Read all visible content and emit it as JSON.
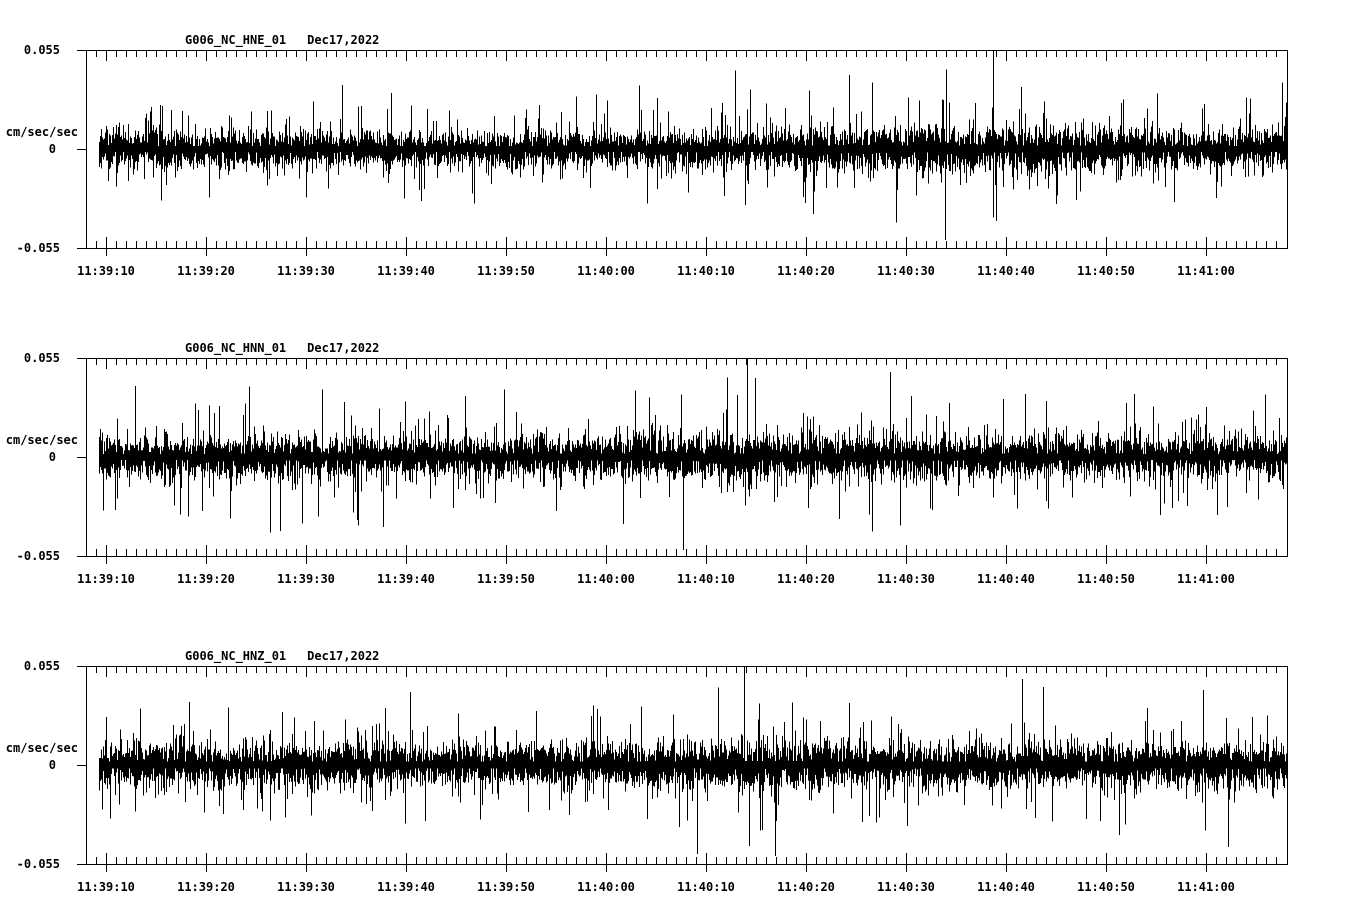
{
  "page": {
    "background": "#ffffff",
    "ink": "#000000"
  },
  "axis": {
    "x_major_interval_s": 10,
    "x_minor_interval_s": 1,
    "x_start": "11:39:08",
    "x_end": "11:41:08"
  },
  "chart_data": [
    {
      "type": "line",
      "title": "G006_NC_HNE_01",
      "date": "Dec17,2022",
      "ylabel": "cm/sec/sec",
      "ylim": [
        -0.055,
        0.055
      ],
      "ytick_labels": [
        "0.055",
        "0",
        "-0.055"
      ],
      "xtick_labels": [
        "11:39:10",
        "11:39:20",
        "11:39:30",
        "11:39:40",
        "11:39:50",
        "11:40:00",
        "11:40:10",
        "11:40:20",
        "11:40:30",
        "11:40:40",
        "11:40:50",
        "11:41:00"
      ],
      "x_start": "11:39:08",
      "x_end": "11:41:08",
      "series_desc": "broadband ground-acceleration noise, east component; amplitude rises after 11:40:20",
      "waveform": {
        "seed": 11,
        "rms": 0.0046,
        "tail_prob": 0.1,
        "envelope": [
          [
            0,
            1.0
          ],
          [
            60,
            0.95
          ],
          [
            66,
            1.05
          ],
          [
            72,
            1.2
          ],
          [
            76,
            1.35
          ],
          [
            82,
            1.25
          ],
          [
            90,
            1.3
          ],
          [
            98,
            1.18
          ],
          [
            110,
            1.1
          ],
          [
            120,
            1.12
          ]
        ],
        "spikes": [
          [
            22.0,
            -0.027
          ],
          [
            33.5,
            -0.029
          ],
          [
            65.9,
            -0.031
          ],
          [
            66.4,
            0.033
          ],
          [
            76.3,
            0.041
          ],
          [
            78.6,
            0.037
          ],
          [
            119.6,
            0.037
          ]
        ]
      }
    },
    {
      "type": "line",
      "title": "G006_NC_HNN_01",
      "date": "Dec17,2022",
      "ylabel": "cm/sec/sec",
      "ylim": [
        -0.055,
        0.055
      ],
      "ytick_labels": [
        "0.055",
        "0",
        "-0.055"
      ],
      "xtick_labels": [
        "11:39:10",
        "11:39:20",
        "11:39:30",
        "11:39:40",
        "11:39:50",
        "11:40:00",
        "11:40:10",
        "11:40:20",
        "11:40:30",
        "11:40:40",
        "11:40:50",
        "11:41:00"
      ],
      "x_start": "11:39:08",
      "x_end": "11:41:08",
      "series_desc": "broadband ground-acceleration noise, north component; full-scale positive spike at 11:40:14, deep negative spikes near 11:39:28-11:39:38",
      "waveform": {
        "seed": 22,
        "rms": 0.0048,
        "tail_prob": 0.1,
        "envelope": [
          [
            0,
            1.02
          ],
          [
            15,
            1.08
          ],
          [
            20,
            1.18
          ],
          [
            32,
            1.08
          ],
          [
            45,
            1.12
          ],
          [
            58,
            1.22
          ],
          [
            70,
            1.18
          ],
          [
            85,
            1.12
          ],
          [
            100,
            1.08
          ],
          [
            120,
            1.05
          ]
        ],
        "spikes": [
          [
            19.4,
            -0.041
          ],
          [
            21.6,
            -0.037
          ],
          [
            27.2,
            -0.038
          ],
          [
            29.7,
            -0.039
          ],
          [
            47.0,
            -0.03
          ],
          [
            66.1,
            0.055
          ],
          [
            66.3,
            -0.022
          ],
          [
            96.0,
            0.031
          ],
          [
            104.0,
            0.03
          ]
        ]
      }
    },
    {
      "type": "line",
      "title": "G006_NC_HNZ_01",
      "date": "Dec17,2022",
      "ylabel": "cm/sec/sec",
      "ylim": [
        -0.055,
        0.055
      ],
      "ytick_labels": [
        "0.055",
        "0",
        "-0.055"
      ],
      "xtick_labels": [
        "11:39:10",
        "11:39:20",
        "11:39:30",
        "11:39:40",
        "11:39:50",
        "11:40:00",
        "11:40:10",
        "11:40:20",
        "11:40:30",
        "11:40:40",
        "11:40:50",
        "11:41:00"
      ],
      "x_start": "11:39:08",
      "x_end": "11:41:08",
      "series_desc": "broadband ground-acceleration noise, vertical component; full-scale positive spike at 11:40:13 followed by deep negative swings",
      "waveform": {
        "seed": 33,
        "rms": 0.005,
        "tail_prob": 0.1,
        "envelope": [
          [
            0,
            1.05
          ],
          [
            30,
            1.08
          ],
          [
            60,
            1.08
          ],
          [
            65,
            1.2
          ],
          [
            69,
            1.28
          ],
          [
            74,
            1.12
          ],
          [
            90,
            1.08
          ],
          [
            120,
            1.05
          ]
        ],
        "spikes": [
          [
            14.2,
            0.032
          ],
          [
            22.5,
            -0.028
          ],
          [
            45.0,
            0.03
          ],
          [
            65.8,
            0.055
          ],
          [
            66.3,
            -0.045
          ],
          [
            67.6,
            -0.036
          ],
          [
            79.0,
            -0.032
          ],
          [
            100.0,
            -0.03
          ]
        ]
      }
    }
  ]
}
